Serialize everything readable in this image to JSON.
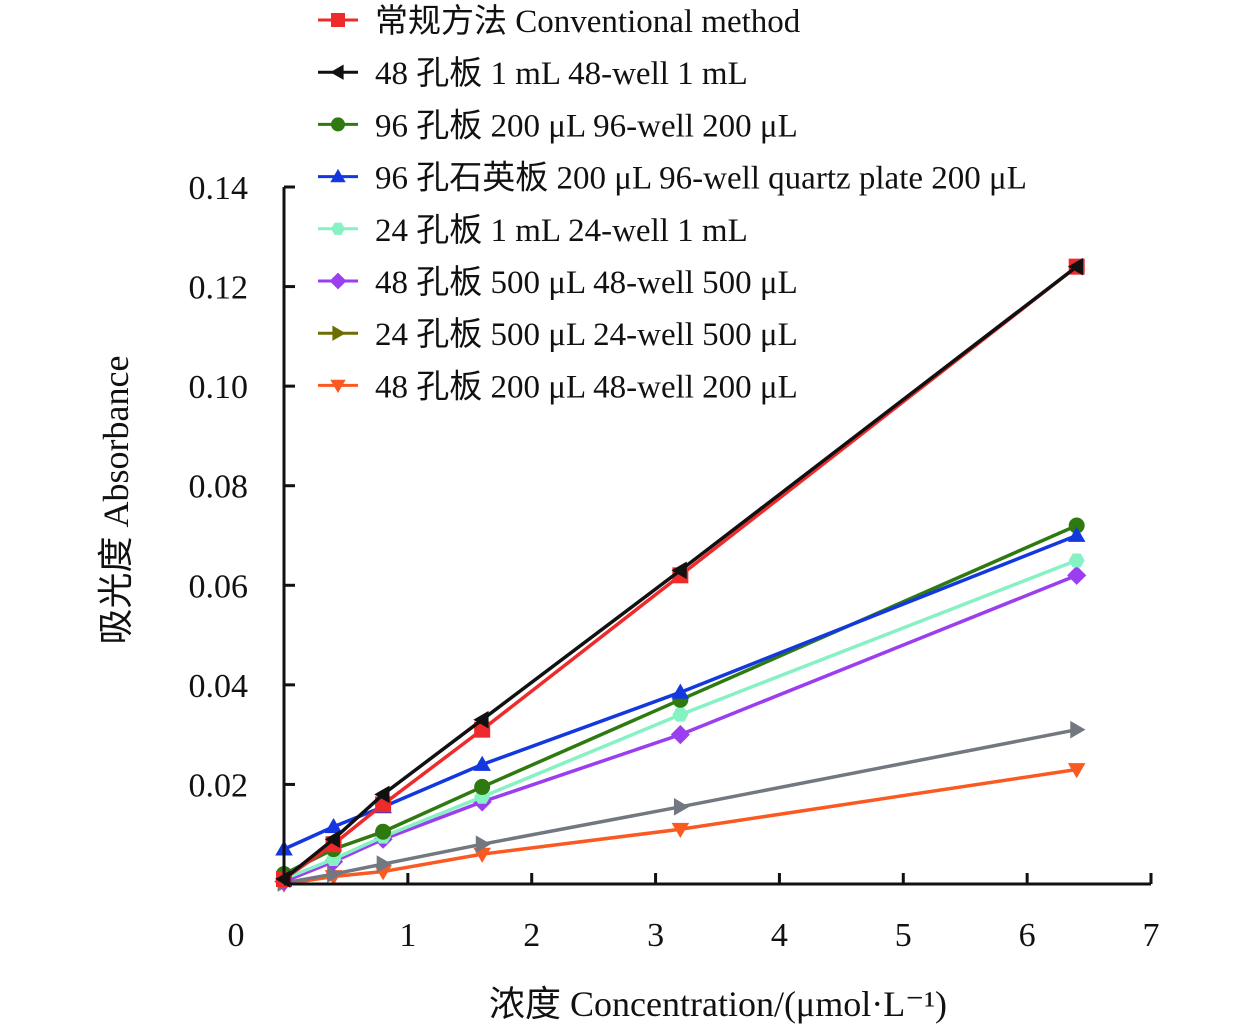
{
  "chart_data": {
    "type": "line",
    "title": "",
    "xlabel": "浓度 Concentration/(μmol·L⁻¹)",
    "ylabel": "吸光度 Absorbance",
    "xlim": [
      0,
      7
    ],
    "ylim": [
      0,
      0.14
    ],
    "x_ticks": [
      0,
      1,
      2,
      3,
      4,
      5,
      6,
      7
    ],
    "x_tick_labels": [
      "0",
      "1",
      "2",
      "3",
      "4",
      "5",
      "6",
      "7"
    ],
    "y_ticks": [
      0.02,
      0.04,
      0.06,
      0.08,
      0.1,
      0.12,
      0.14
    ],
    "y_tick_labels": [
      "0.02",
      "0.04",
      "0.06",
      "0.08",
      "0.10",
      "0.12",
      "0.14"
    ],
    "grid": false,
    "legend_position": "top",
    "x": [
      0,
      0.4,
      0.8,
      1.6,
      3.2,
      6.4
    ],
    "series": [
      {
        "name": "常规方法 Conventional method",
        "marker": "square",
        "color": "#ee2a2a",
        "line_color": "#ee2a2a",
        "values": [
          0.001,
          0.008,
          0.016,
          0.031,
          0.062,
          0.124
        ]
      },
      {
        "name": "48 孔板 1 mL 48-well 1 mL",
        "marker": "triangle-left",
        "color": "#111111",
        "line_color": "#111111",
        "values": [
          0.001,
          0.009,
          0.018,
          0.033,
          0.063,
          0.124
        ]
      },
      {
        "name": "96 孔板 200 μL 96-well 200 μL",
        "marker": "circle",
        "color": "#2e7a10",
        "line_color": "#2e7a10",
        "values": [
          0.002,
          0.007,
          0.0105,
          0.0195,
          0.037,
          0.072
        ]
      },
      {
        "name": "96 孔石英板 200 μL 96-well quartz plate 200 μL",
        "marker": "triangle-up",
        "color": "#1438e0",
        "line_color": "#1438e0",
        "values": [
          0.007,
          0.0115,
          0.0155,
          0.024,
          0.0385,
          0.07
        ]
      },
      {
        "name": "24 孔板 1 mL 24-well 1 mL",
        "marker": "hexagon",
        "color": "#86f2c4",
        "line_color": "#86f2c4",
        "values": [
          0.001,
          0.005,
          0.0095,
          0.0175,
          0.034,
          0.065
        ]
      },
      {
        "name": "48 孔板 500 μL 48-well 500 μL",
        "marker": "diamond",
        "color": "#9b3ef0",
        "line_color": "#9b3ef0",
        "values": [
          0.0005,
          0.0045,
          0.009,
          0.0165,
          0.03,
          0.062
        ]
      },
      {
        "name": "24 孔板 500 μL 24-well 500 μL",
        "marker": "triangle-right",
        "color": "#6e6e00",
        "line_color": "#737880",
        "values": [
          0.0002,
          0.002,
          0.004,
          0.008,
          0.0155,
          0.031
        ]
      },
      {
        "name": "48 孔板 200 μL 48-well 200 μL",
        "marker": "triangle-down",
        "color": "#fa5a22",
        "line_color": "#fa5a22",
        "values": [
          0.0,
          0.0015,
          0.0025,
          0.006,
          0.011,
          0.023
        ]
      }
    ]
  }
}
